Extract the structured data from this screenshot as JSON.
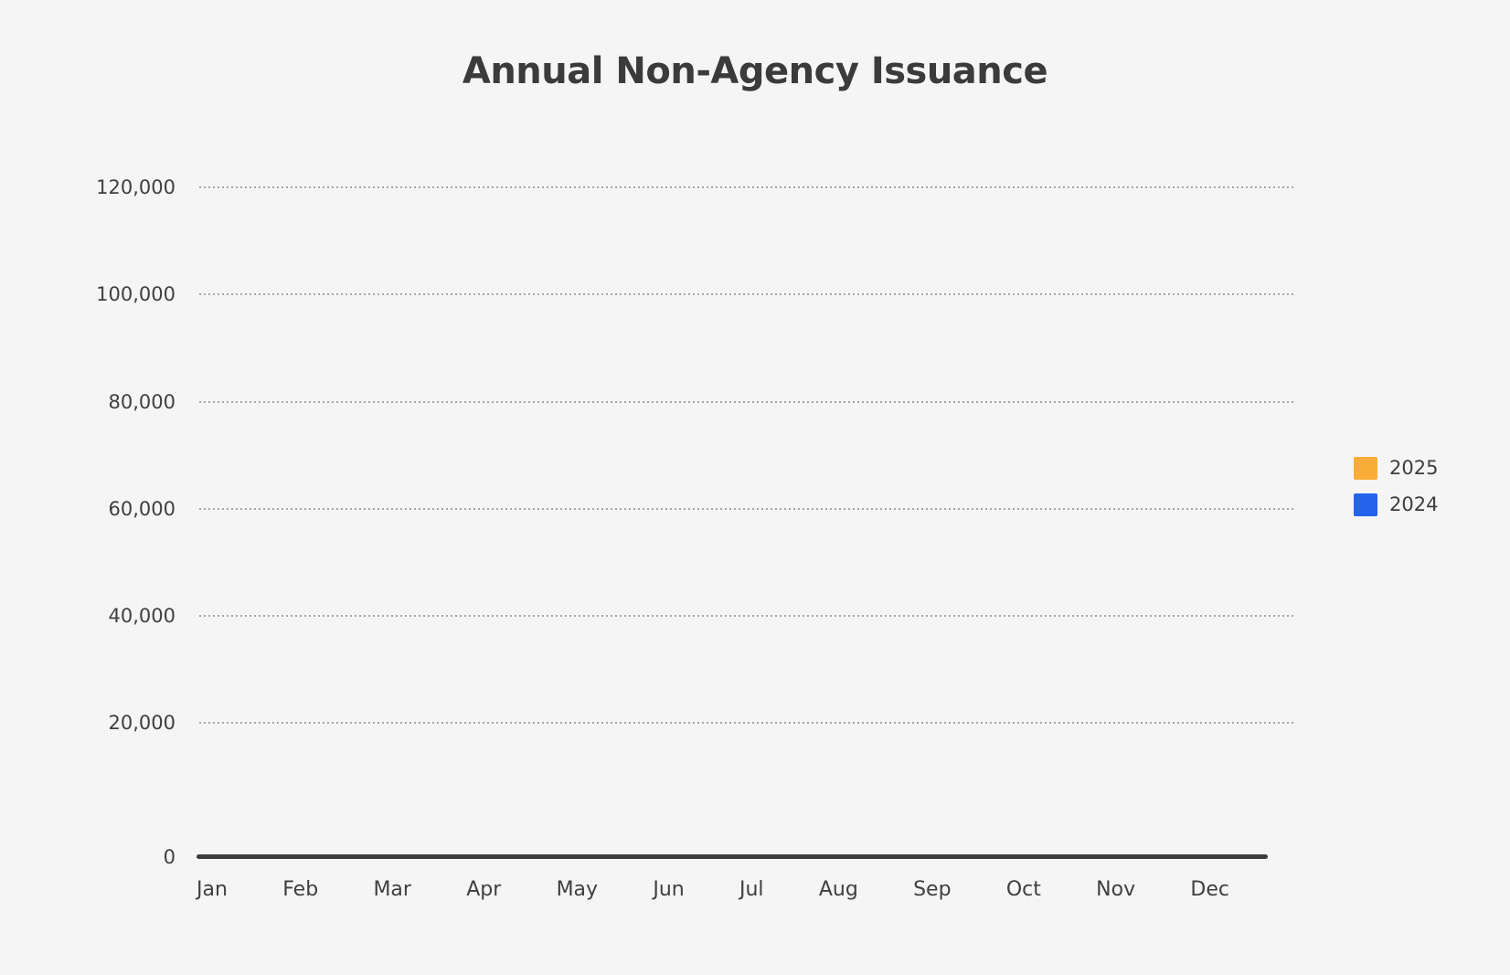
{
  "title": "Annual Non-Agency Issuance",
  "legend": {
    "items": [
      {
        "label": "2025",
        "color": "#faac38"
      },
      {
        "label": "2024",
        "color": "#2563eb"
      }
    ]
  },
  "y_axis": {
    "tick_labels": [
      "120,000",
      "100,000",
      "80,000",
      "60,000",
      "40,000",
      "20,000",
      "0"
    ]
  },
  "x_axis": {
    "tick_labels": [
      "Jan",
      "Feb",
      "Mar",
      "Apr",
      "May",
      "Jun",
      "Jul",
      "Aug",
      "Sep",
      "Oct",
      "Nov",
      "Dec"
    ]
  },
  "colors": {
    "background": "#f5f5f6",
    "title_text": "#3b3b3b",
    "tick_text": "#3f3f3f",
    "gridline": "#a6a6aa",
    "axis_line": "#3d3d40",
    "series_2025": "#faac38",
    "series_2024": "#2563eb"
  },
  "chart_data": {
    "type": "bar",
    "title": "Annual Non-Agency Issuance",
    "categories": [
      "Jan",
      "Feb",
      "Mar",
      "Apr",
      "May",
      "Jun",
      "Jul",
      "Aug",
      "Sep",
      "Oct",
      "Nov",
      "Dec"
    ],
    "series": [
      {
        "name": "2025",
        "color": "#faac38",
        "values": []
      },
      {
        "name": "2024",
        "color": "#2563eb",
        "values": []
      }
    ],
    "xlabel": "",
    "ylabel": "",
    "ylim": [
      0,
      120000
    ],
    "y_ticks": [
      0,
      20000,
      40000,
      60000,
      80000,
      100000,
      120000
    ],
    "grid": "horizontal dotted gridlines on",
    "legend_position": "right",
    "plot_content": "empty - no data points rendered for either series"
  }
}
